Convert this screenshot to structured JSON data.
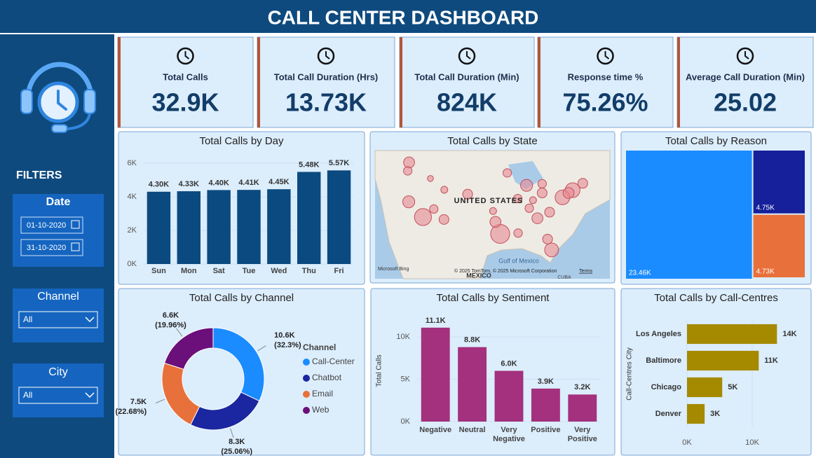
{
  "header": {
    "title": "CALL CENTER DASHBOARD"
  },
  "kpis": [
    {
      "label": "Total Calls",
      "value": "32.9K"
    },
    {
      "label": "Total Call Duration (Hrs)",
      "value": "13.73K"
    },
    {
      "label": "Total Call Duration (Min)",
      "value": "824K"
    },
    {
      "label": "Response time %",
      "value": "75.26%"
    },
    {
      "label": "Average Call Duration (Min)",
      "value": "25.02"
    }
  ],
  "filters": {
    "title": "FILTERS",
    "date": {
      "label": "Date",
      "start": "01-10-2020",
      "end": "31-10-2020"
    },
    "channel": {
      "label": "Channel",
      "value": "All"
    },
    "city": {
      "label": "City",
      "value": "All"
    }
  },
  "chart_data": [
    {
      "type": "bar",
      "title": "Total Calls by Day",
      "categories": [
        "Sun",
        "Mon",
        "Sat",
        "Tue",
        "Wed",
        "Thu",
        "Fri"
      ],
      "values": [
        4300,
        4330,
        4400,
        4410,
        4450,
        5480,
        5570
      ],
      "value_labels": [
        "4.30K",
        "4.33K",
        "4.40K",
        "4.41K",
        "4.45K",
        "5.48K",
        "5.57K"
      ],
      "color": "#0b4a80",
      "ylim": [
        0,
        6000
      ],
      "yticks": [
        {
          "value": 0,
          "label": "0K"
        },
        {
          "value": 2000,
          "label": "2K"
        },
        {
          "value": 4000,
          "label": "4K"
        },
        {
          "value": 6000,
          "label": "6K"
        }
      ]
    },
    {
      "type": "map",
      "title": "Total Calls by State",
      "country_label": "UNITED STATES",
      "south_label": "MEXICO",
      "gulf_label": "Gulf of Mexico",
      "island_label": "CUBA",
      "attribution": "© 2025 TomTom, © 2025 Microsoft Corporation",
      "terms": "Terms",
      "provider": "Microsoft Bing",
      "color": "#e88a95",
      "points": [
        {
          "lon": -122.3,
          "lat": 47.6,
          "value": 500
        },
        {
          "lon": -122.7,
          "lat": 45.5,
          "value": 300
        },
        {
          "lon": -118.2,
          "lat": 34.0,
          "value": 1200
        },
        {
          "lon": -122.4,
          "lat": 37.8,
          "value": 600
        },
        {
          "lon": -115.0,
          "lat": 36.0,
          "value": 300
        },
        {
          "lon": -112.0,
          "lat": 33.4,
          "value": 400
        },
        {
          "lon": -105.0,
          "lat": 39.7,
          "value": 400
        },
        {
          "lon": -95.4,
          "lat": 29.8,
          "value": 1500
        },
        {
          "lon": -96.8,
          "lat": 32.8,
          "value": 500
        },
        {
          "lon": -80.2,
          "lat": 25.8,
          "value": 800
        },
        {
          "lon": -81.4,
          "lat": 28.5,
          "value": 400
        },
        {
          "lon": -84.4,
          "lat": 33.7,
          "value": 500
        },
        {
          "lon": -74.0,
          "lat": 40.7,
          "value": 900
        },
        {
          "lon": -77.0,
          "lat": 38.9,
          "value": 900
        },
        {
          "lon": -87.6,
          "lat": 41.9,
          "value": 600
        },
        {
          "lon": -83.0,
          "lat": 40.0,
          "value": 400
        },
        {
          "lon": -93.3,
          "lat": 45.0,
          "value": 300
        },
        {
          "lon": -90.2,
          "lat": 38.6,
          "value": 300
        },
        {
          "lon": -86.8,
          "lat": 36.2,
          "value": 300
        },
        {
          "lon": -80.8,
          "lat": 35.2,
          "value": 400
        },
        {
          "lon": -71.0,
          "lat": 42.4,
          "value": 400
        },
        {
          "lon": -75.2,
          "lat": 40.0,
          "value": 500
        },
        {
          "lon": -111.9,
          "lat": 40.8,
          "value": 200
        },
        {
          "lon": -90.1,
          "lat": 30.0,
          "value": 300
        },
        {
          "lon": -97.5,
          "lat": 35.5,
          "value": 200
        },
        {
          "lon": -83.0,
          "lat": 42.3,
          "value": 300
        },
        {
          "lon": -85.7,
          "lat": 38.2,
          "value": 200
        },
        {
          "lon": -116.0,
          "lat": 43.6,
          "value": 150
        }
      ]
    },
    {
      "type": "treemap",
      "title": "Total Calls by Reason",
      "values": [
        23460,
        4750,
        4730
      ],
      "value_labels": [
        "23.46K",
        "4.75K",
        "4.73K"
      ],
      "colors": [
        "#1a8cff",
        "#15209a",
        "#e8703a"
      ]
    },
    {
      "type": "pie",
      "title": "Total Calls by Channel",
      "donut": true,
      "legend_title": "Channel",
      "categories": [
        "Call-Center",
        "Chatbot",
        "Email",
        "Web"
      ],
      "values": [
        10600,
        8300,
        7500,
        6600
      ],
      "value_labels": [
        "10.6K",
        "8.3K",
        "7.5K",
        "6.6K"
      ],
      "percent_labels": [
        "(32.3%)",
        "(25.06%)",
        "(22.68%)",
        "(19.96%)"
      ],
      "colors": [
        "#1a8cff",
        "#1a27a0",
        "#e8703a",
        "#6b0f7a"
      ]
    },
    {
      "type": "bar",
      "title": "Total Calls by Sentiment",
      "categories": [
        "Negative",
        "Neutral",
        "Very Negative",
        "Positive",
        "Very Positive"
      ],
      "values": [
        11100,
        8800,
        6000,
        3900,
        3200
      ],
      "value_labels": [
        "11.1K",
        "8.8K",
        "6.0K",
        "3.9K",
        "3.2K"
      ],
      "color": "#a3317d",
      "y_label": "Total Calls",
      "ylim": [
        0,
        12000
      ],
      "yticks": [
        {
          "value": 0,
          "label": "0K"
        },
        {
          "value": 5000,
          "label": "5K"
        },
        {
          "value": 10000,
          "label": "10K"
        }
      ]
    },
    {
      "type": "bar",
      "orientation": "horizontal",
      "title": "Total Calls by Call-Centres",
      "categories": [
        "Los Angeles",
        "Baltimore",
        "Chicago",
        "Denver"
      ],
      "values": [
        13800,
        11000,
        5400,
        2700
      ],
      "value_labels": [
        "14K",
        "11K",
        "5K",
        "3K"
      ],
      "color": "#a58a00",
      "y_label": "Call-Centres City",
      "xlim": [
        0,
        15000
      ],
      "xticks": [
        {
          "value": 0,
          "label": "0K"
        },
        {
          "value": 10000,
          "label": "10K"
        }
      ]
    }
  ]
}
